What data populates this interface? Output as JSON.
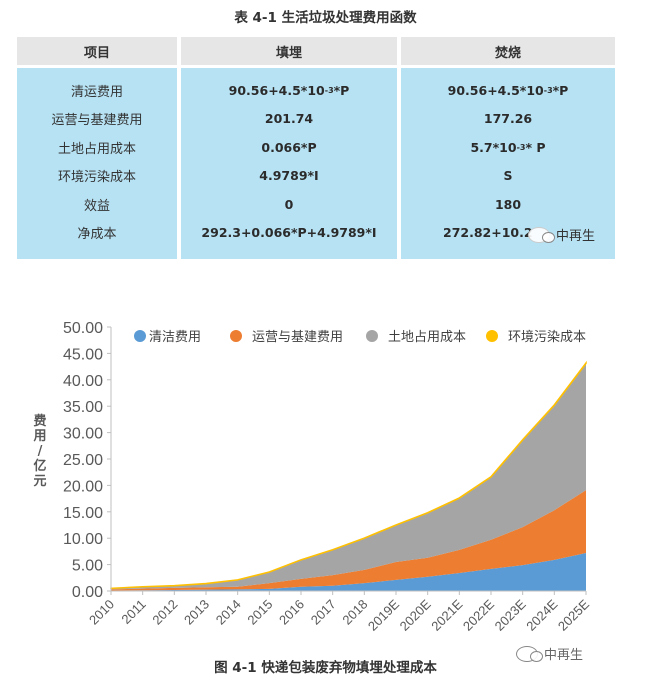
{
  "table": {
    "title": "表 4-1 生活垃圾处理费用函数",
    "headers": [
      "项目",
      "填埋",
      "焚烧"
    ],
    "rows": [
      {
        "item": "清运费用",
        "landfill": "90.56+4.5*10-3*P",
        "incineration": "90.56+4.5*10-3*P"
      },
      {
        "item": "运营与基建费用",
        "landfill": "201.74",
        "incineration": "177.26"
      },
      {
        "item": "土地占用成本",
        "landfill": "0.066*P",
        "incineration": "5.7*10-3* P"
      },
      {
        "item": "环境污染成本",
        "landfill": "4.9789*I",
        "incineration": "S"
      },
      {
        "item": "效益",
        "landfill": "0",
        "incineration": "180"
      },
      {
        "item": "净成本",
        "landfill": "292.3+0.066*P+4.9789*I",
        "incineration": "272.82+10.2"
      }
    ],
    "superscript": "-3",
    "landfill_cleaning_base": "90.56+4.5*10",
    "landfill_cleaning_tail": "*P",
    "incin_land_base": "5.7*10",
    "incin_land_tail": "* P"
  },
  "watermark": {
    "text": "中再生",
    "icon": "wechat-icon"
  },
  "caption": "图 4-1 快递包装废弃物填埋处理成本",
  "colors": {
    "header_bg": "#e6e6e6",
    "body_bg": "#b7e2f3",
    "blue": "#5b9bd5",
    "orange": "#ed7d31",
    "gray": "#a5a5a5",
    "yellow": "#ffc000"
  },
  "chart_data": {
    "type": "area",
    "stacked": true,
    "title": "",
    "xlabel": "",
    "ylabel": "费用/亿元",
    "ylim": [
      0,
      50
    ],
    "yticks": [
      "0.00",
      "5.00",
      "10.00",
      "15.00",
      "20.00",
      "25.00",
      "30.00",
      "35.00",
      "40.00",
      "45.00",
      "50.00"
    ],
    "grid": false,
    "legend_position": "top",
    "categories": [
      "2010",
      "2011",
      "2012",
      "2013",
      "2014",
      "2015",
      "2016",
      "2017",
      "2018",
      "2019E",
      "2020E",
      "2021E",
      "2022E",
      "2023E",
      "2024E",
      "2025E"
    ],
    "series": [
      {
        "name": "清洁费用",
        "color": "#5b9bd5",
        "values": [
          0.1,
          0.15,
          0.2,
          0.25,
          0.3,
          0.4,
          0.8,
          1.0,
          1.5,
          2.1,
          2.7,
          3.4,
          4.2,
          4.9,
          5.9,
          7.2
        ]
      },
      {
        "name": "运营与基建费用",
        "color": "#ed7d31",
        "values": [
          0.2,
          0.3,
          0.4,
          0.45,
          0.5,
          1.1,
          1.5,
          2.0,
          2.5,
          3.4,
          3.6,
          4.4,
          5.5,
          7.2,
          9.4,
          11.9
        ]
      },
      {
        "name": "土地占用成本",
        "color": "#a5a5a5",
        "values": [
          0.2,
          0.35,
          0.4,
          0.7,
          1.3,
          2.1,
          3.6,
          4.8,
          6.0,
          7.0,
          8.5,
          9.8,
          11.9,
          16.5,
          19.9,
          24.0
        ]
      },
      {
        "name": "环境污染成本",
        "color": "#ffc000",
        "values": [
          0.01,
          0.01,
          0.01,
          0.01,
          0.01,
          0.01,
          0.01,
          0.02,
          0.02,
          0.02,
          0.03,
          0.03,
          0.04,
          0.05,
          0.06,
          0.08
        ]
      }
    ]
  }
}
